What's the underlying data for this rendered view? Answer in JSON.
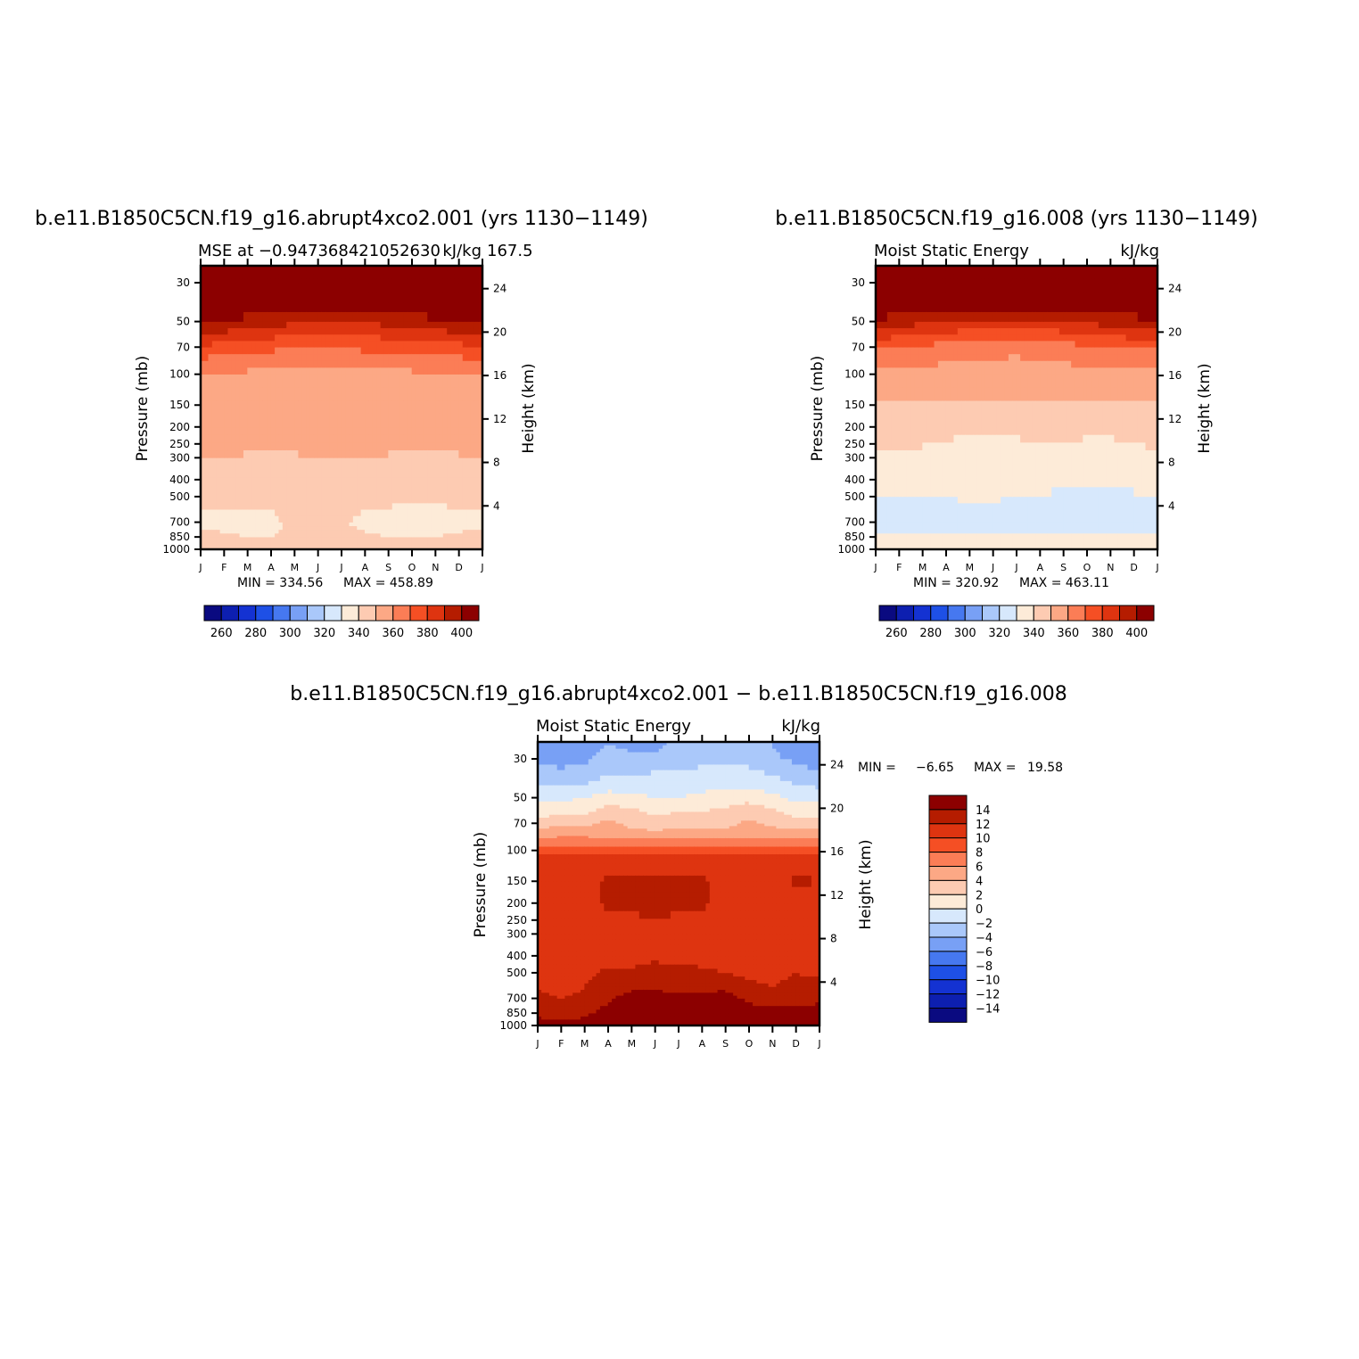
{
  "chart_data": [
    {
      "type": "heatmap",
      "title": "b.e11.B1850C5CN.f19_g16.abrupt4xco2.001 (yrs 1130−1149)",
      "subtitle_left": "MSE at −0.947368421052630",
      "subtitle_right": "kJ/kg",
      "subtitle_overlap": "167.5",
      "ylabel_left": "Pressure (mb)",
      "ylabel_right": "Height (km)",
      "x_months": [
        "J",
        "F",
        "M",
        "A",
        "M",
        "J",
        "J",
        "A",
        "S",
        "O",
        "N",
        "D",
        "J"
      ],
      "pressure_levels": [
        1000,
        850,
        700,
        500,
        400,
        300,
        250,
        200,
        150,
        100,
        70,
        50,
        30
      ],
      "height_ticks_km": [
        4,
        8,
        12,
        16,
        20,
        24
      ],
      "min_label": "MIN = 334.56",
      "max_label": "MAX = 458.89",
      "min": 334.56,
      "max": 458.89,
      "contour_pressures": [
        1000,
        850,
        700,
        500,
        300,
        200,
        100,
        70,
        50,
        30
      ],
      "contour_values": [
        [
          345,
          345,
          346,
          346,
          347,
          347,
          347,
          346,
          345,
          345,
          345,
          345,
          345
        ],
        [
          342,
          341,
          340,
          340,
          341,
          342,
          342,
          341,
          340,
          340,
          340,
          341,
          342
        ],
        [
          338,
          338,
          337,
          338,
          342,
          342,
          341,
          338,
          337,
          337,
          337,
          338,
          338
        ],
        [
          343,
          343,
          342,
          342,
          343,
          343,
          343,
          342,
          342,
          341,
          341,
          342,
          343
        ],
        [
          351,
          350,
          349,
          349,
          349,
          350,
          350,
          351,
          349,
          348,
          348,
          349,
          351
        ],
        [
          356,
          356,
          356,
          356,
          356,
          356,
          356,
          356,
          356,
          356,
          356,
          356,
          356
        ],
        [
          358,
          358,
          358,
          358,
          358,
          358,
          358,
          358,
          358,
          358,
          358,
          358,
          358
        ],
        [
          378,
          376,
          374,
          372,
          370,
          370,
          370,
          372,
          373,
          374,
          376,
          377,
          378
        ],
        [
          402,
          399,
          396,
          394,
          392,
          391,
          390,
          391,
          393,
          395,
          397,
          399,
          402
        ],
        [
          425,
          425,
          425,
          425,
          425,
          425,
          425,
          425,
          425,
          425,
          425,
          425,
          425
        ]
      ]
    },
    {
      "type": "heatmap",
      "title": "b.e11.B1850C5CN.f19_g16.008 (yrs 1130−1149)",
      "subtitle_left": "Moist Static Energy",
      "subtitle_right": "kJ/kg",
      "ylabel_left": "Pressure (mb)",
      "ylabel_right": "Height (km)",
      "x_months": [
        "J",
        "F",
        "M",
        "A",
        "M",
        "J",
        "J",
        "A",
        "S",
        "O",
        "N",
        "D",
        "J"
      ],
      "pressure_levels": [
        1000,
        850,
        700,
        500,
        400,
        300,
        250,
        200,
        150,
        100,
        70,
        50,
        30
      ],
      "height_ticks_km": [
        4,
        8,
        12,
        16,
        20,
        24
      ],
      "min_label": "MIN = 320.92",
      "max_label": "MAX = 463.11",
      "min": 320.92,
      "max": 463.11,
      "contour_pressures": [
        1000,
        850,
        700,
        500,
        300,
        200,
        100,
        70,
        50,
        30
      ],
      "contour_values": [
        [
          335,
          335,
          335,
          335,
          336,
          336,
          336,
          335,
          335,
          335,
          335,
          335,
          335
        ],
        [
          332,
          332,
          331,
          331,
          331,
          332,
          332,
          331,
          331,
          331,
          331,
          331,
          332
        ],
        [
          326,
          326,
          326,
          326,
          326,
          326,
          325,
          325,
          324,
          324,
          324,
          325,
          326
        ],
        [
          330,
          330,
          330,
          330,
          331,
          331,
          330,
          330,
          328,
          328,
          328,
          329,
          330
        ],
        [
          338,
          338,
          337,
          336,
          335,
          335,
          336,
          337,
          337,
          336,
          336,
          337,
          338
        ],
        [
          345,
          346,
          345,
          343,
          342,
          341,
          342,
          343,
          343,
          342,
          342,
          343,
          345
        ],
        [
          356,
          356,
          356,
          356,
          356,
          356,
          356,
          356,
          356,
          356,
          356,
          356,
          356
        ],
        [
          372,
          370,
          368,
          366,
          364,
          363,
          362,
          364,
          366,
          368,
          370,
          371,
          372
        ],
        [
          398,
          395,
          392,
          390,
          388,
          387,
          386,
          387,
          389,
          392,
          394,
          396,
          398
        ],
        [
          425,
          425,
          425,
          425,
          425,
          425,
          425,
          425,
          425,
          425,
          425,
          425,
          425
        ]
      ]
    },
    {
      "type": "heatmap",
      "title": "b.e11.B1850C5CN.f19_g16.abrupt4xco2.001 − b.e11.B1850C5CN.f19_g16.008",
      "subtitle_left": "Moist Static Energy",
      "subtitle_right": "kJ/kg",
      "ylabel_left": "Pressure (mb)",
      "ylabel_right": "Height (km)",
      "x_months": [
        "J",
        "F",
        "M",
        "A",
        "M",
        "J",
        "J",
        "A",
        "S",
        "O",
        "N",
        "D",
        "J"
      ],
      "pressure_levels": [
        1000,
        850,
        700,
        500,
        400,
        300,
        250,
        200,
        150,
        100,
        70,
        50,
        30
      ],
      "height_ticks_km": [
        4,
        8,
        12,
        16,
        20,
        24
      ],
      "min_label": "MIN =",
      "min_value": "−6.65",
      "max_label": "MAX =",
      "max_value": "19.58",
      "min": -6.65,
      "max": 19.58,
      "contour_pressures": [
        1000,
        850,
        700,
        600,
        500,
        400,
        300,
        200,
        150,
        110,
        100,
        90,
        80,
        70,
        60,
        50,
        40,
        30,
        25
      ],
      "contour_values": [
        [
          15,
          15,
          15,
          15,
          15,
          15,
          15,
          15,
          15,
          15,
          15,
          15,
          15
        ],
        [
          13.5,
          13,
          13.5,
          15,
          15,
          15,
          15,
          15,
          15,
          15,
          15,
          15,
          15
        ],
        [
          12.5,
          12,
          12.5,
          13.5,
          15,
          15,
          14.5,
          14.5,
          15,
          13.5,
          13,
          13,
          13.5
        ],
        [
          12,
          11,
          12,
          13,
          13.5,
          13.5,
          13.5,
          13.5,
          13.5,
          12.5,
          12,
          12.5,
          13
        ],
        [
          11,
          10.5,
          11.5,
          12.5,
          12.5,
          13,
          13,
          12.5,
          12,
          11.5,
          11.5,
          12,
          11.5
        ],
        [
          11,
          11,
          11,
          11,
          11,
          11.5,
          11,
          11,
          11,
          11,
          11,
          11,
          11
        ],
        [
          11,
          11,
          11,
          11,
          11,
          11.5,
          11,
          11,
          11,
          11,
          11,
          11,
          11
        ],
        [
          11,
          11,
          11,
          12.5,
          12.5,
          12.5,
          12.5,
          12.5,
          11,
          11,
          11,
          11,
          11
        ],
        [
          12,
          11,
          11,
          12.5,
          12.5,
          12.5,
          12.5,
          12.5,
          11,
          11,
          11,
          12.5,
          12
        ],
        [
          11,
          11,
          11,
          11,
          11,
          11,
          11,
          11,
          11,
          11,
          11,
          11,
          11
        ],
        [
          9,
          9,
          9,
          9,
          9,
          9,
          9,
          9,
          9,
          9,
          9,
          9,
          9
        ],
        [
          7,
          7,
          7,
          7,
          7,
          7,
          7,
          7,
          7,
          7,
          7,
          7,
          7
        ],
        [
          5,
          5.5,
          5.5,
          5,
          4.5,
          4.5,
          4.5,
          4.5,
          4.5,
          4.5,
          5,
          5,
          5
        ],
        [
          3,
          3.5,
          3.5,
          4.5,
          3.5,
          3,
          3.5,
          3.5,
          3.5,
          4.5,
          3.5,
          3,
          3
        ],
        [
          1,
          1.5,
          1.5,
          3,
          2.5,
          1.5,
          2,
          2,
          2.5,
          3,
          2.5,
          1,
          1
        ],
        [
          -0.5,
          -0.5,
          0,
          1,
          0.5,
          0,
          0,
          0.5,
          1,
          1.5,
          0.5,
          -0.5,
          -0.5
        ],
        [
          -2.5,
          -2.5,
          -2.5,
          -1.5,
          -1.5,
          -1,
          -1,
          -1,
          -1,
          -1,
          -1.5,
          -2.5,
          -3
        ],
        [
          -4.5,
          -5,
          -4.5,
          -3,
          -3.5,
          -3.5,
          -3,
          -2.5,
          -2.5,
          -2.5,
          -3.5,
          -4.5,
          -5
        ],
        [
          -5.5,
          -6,
          -5.5,
          -4,
          -4.5,
          -4.5,
          -3.5,
          -3,
          -3,
          -3,
          -4,
          -5.5,
          -6
        ]
      ]
    }
  ],
  "colorbars": [
    {
      "tick_labels": [
        "260",
        "280",
        "300",
        "320",
        "340",
        "360",
        "380",
        "400"
      ],
      "levels": [
        250,
        260,
        270,
        280,
        290,
        300,
        310,
        320,
        330,
        340,
        350,
        360,
        370,
        380,
        390,
        400
      ],
      "colors": [
        "#0a0a80",
        "#0d1fb0",
        "#1432d2",
        "#1e50e6",
        "#4678f0",
        "#78a0f5",
        "#aac8fa",
        "#d7e8fc",
        "#fdebd8",
        "#fdcbb2",
        "#fca885",
        "#fb7d56",
        "#f54f24",
        "#de3410",
        "#b51c00",
        "#8c0000"
      ]
    },
    {
      "tick_labels": [
        "14",
        "12",
        "10",
        "8",
        "6",
        "4",
        "2",
        "0",
        "−2",
        "−4",
        "−6",
        "−8",
        "−10",
        "−12",
        "−14"
      ],
      "levels": [
        -15,
        -14,
        -12,
        -10,
        -8,
        -6,
        -4,
        -2,
        0,
        2,
        4,
        6,
        8,
        10,
        12,
        14
      ],
      "colors": [
        "#0a0a80",
        "#0d1fb0",
        "#1432d2",
        "#1e50e6",
        "#4678f0",
        "#78a0f5",
        "#aac8fa",
        "#d7e8fc",
        "#fdebd8",
        "#fdcbb2",
        "#fca885",
        "#fb7d56",
        "#f54f24",
        "#de3410",
        "#b51c00",
        "#8c0000"
      ]
    }
  ]
}
